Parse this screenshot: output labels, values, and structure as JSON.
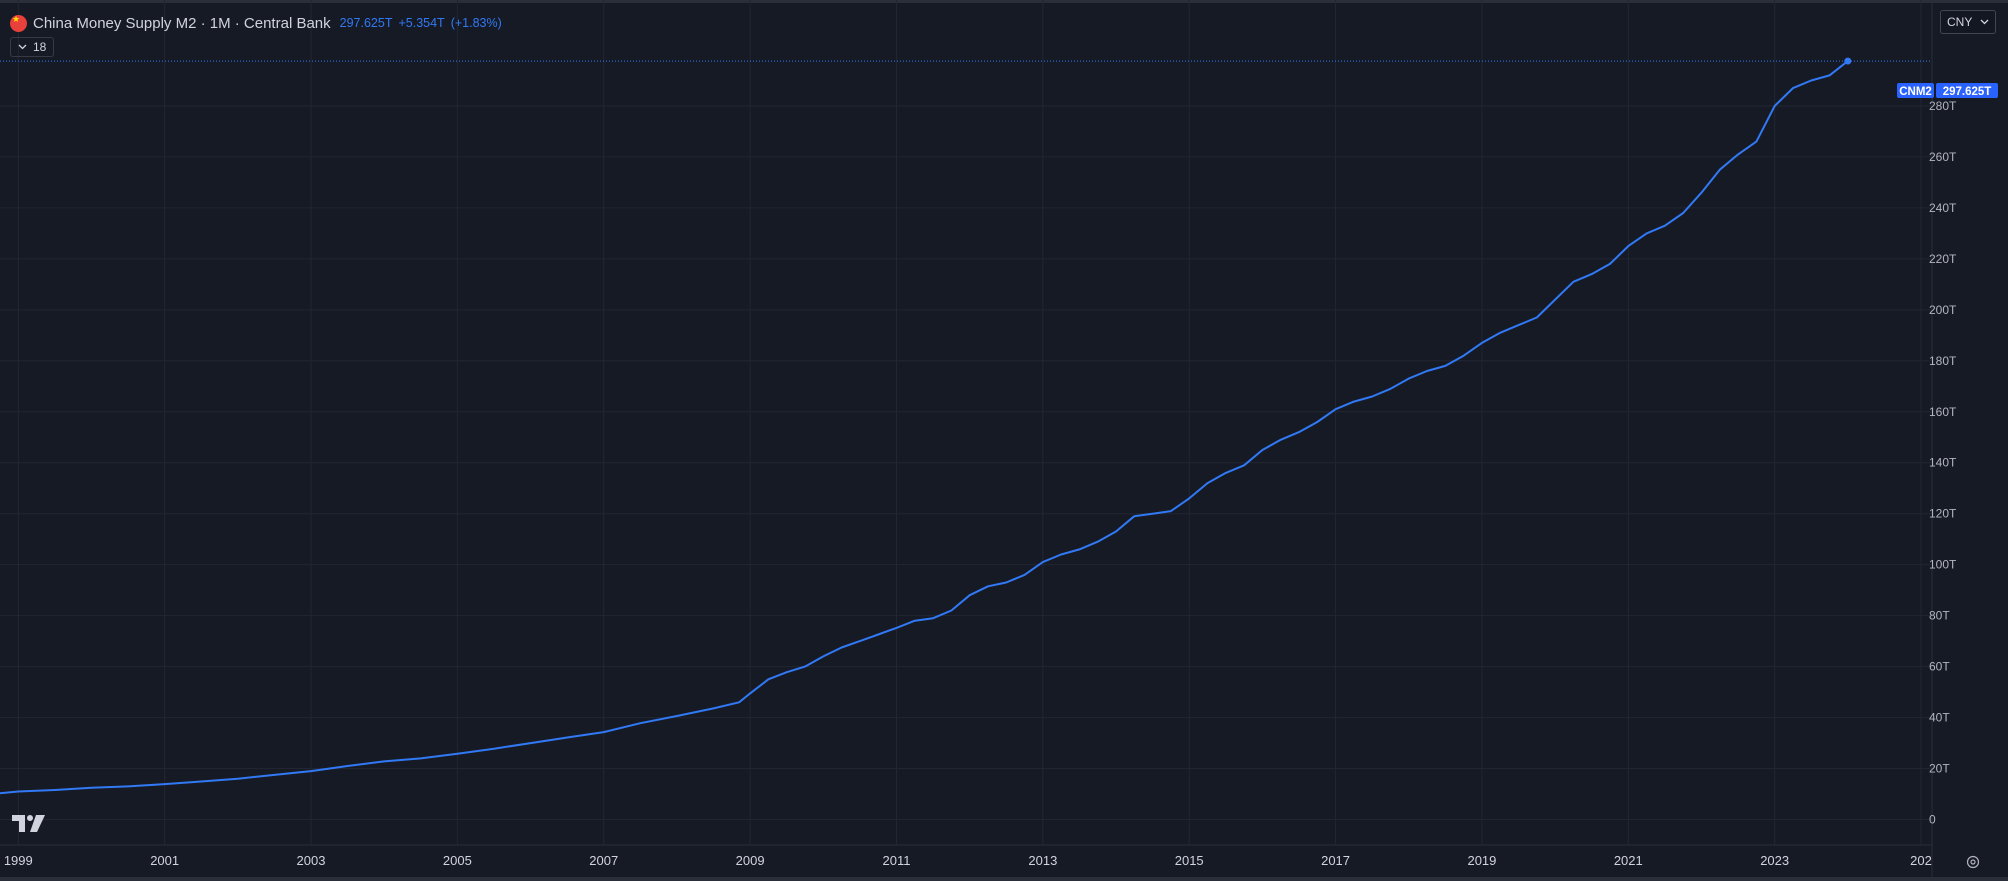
{
  "header": {
    "title": "China Money Supply M2 · 1M · Central Bank",
    "last_value": "297.625T",
    "change": "+5.354T",
    "change_pct": "(+1.83%)"
  },
  "collapse": {
    "label": "18"
  },
  "currency": {
    "label": "CNY"
  },
  "price_label": {
    "symbol": "CNM2",
    "value": "297.625T"
  },
  "colors": {
    "background": "#161a25",
    "line": "#3179f5",
    "grid": "#222633",
    "text": "#b2b5be"
  },
  "icons": {
    "logo": "tradingview-logo-icon",
    "settings": "settings-icon",
    "collapse": "chevron-down-icon",
    "currency": "chevron-down-icon"
  },
  "chart_data": {
    "type": "line",
    "title": "China Money Supply M2",
    "y_tick_labels": [
      "0",
      "20T",
      "40T",
      "60T",
      "80T",
      "100T",
      "120T",
      "140T",
      "160T",
      "180T",
      "200T",
      "220T",
      "240T",
      "260T",
      "280T"
    ],
    "x_tick_labels": [
      "1999",
      "2001",
      "2003",
      "2005",
      "2007",
      "2009",
      "2011",
      "2013",
      "2015",
      "2017",
      "2019",
      "2021",
      "2023",
      "202"
    ],
    "xlim": [
      1998.75,
      2025.15
    ],
    "ylim": [
      -10,
      320
    ],
    "grid": true,
    "series": [
      {
        "unit": "T CNY",
        "x": [
          1998.75,
          1999.0,
          1999.5,
          2000.0,
          2000.5,
          2001.0,
          2001.5,
          2002.0,
          2002.5,
          2003.0,
          2003.5,
          2004.0,
          2004.5,
          2005.0,
          2005.5,
          2006.0,
          2006.5,
          2007.0,
          2007.5,
          2008.0,
          2008.5,
          2008.85,
          2009.0,
          2009.25,
          2009.5,
          2009.75,
          2010.0,
          2010.25,
          2010.5,
          2010.75,
          2011.0,
          2011.25,
          2011.5,
          2011.75,
          2012.0,
          2012.25,
          2012.5,
          2012.75,
          2013.0,
          2013.25,
          2013.5,
          2013.75,
          2014.0,
          2014.25,
          2014.5,
          2014.75,
          2015.0,
          2015.25,
          2015.5,
          2015.75,
          2016.0,
          2016.25,
          2016.5,
          2016.75,
          2017.0,
          2017.25,
          2017.5,
          2017.75,
          2018.0,
          2018.25,
          2018.5,
          2018.75,
          2019.0,
          2019.25,
          2019.5,
          2019.75,
          2020.0,
          2020.25,
          2020.5,
          2020.75,
          2021.0,
          2021.25,
          2021.5,
          2021.75,
          2022.0,
          2022.25,
          2022.5,
          2022.75,
          2023.0,
          2023.25,
          2023.5,
          2023.75,
          2024.0
        ],
        "values": [
          10.3,
          11.0,
          11.6,
          12.5,
          13.0,
          13.9,
          14.9,
          16.0,
          17.5,
          19.0,
          21.0,
          22.8,
          24.0,
          25.8,
          27.8,
          30.0,
          32.2,
          34.3,
          37.8,
          40.6,
          43.6,
          46.0,
          49.5,
          55.0,
          57.8,
          60.0,
          64.0,
          67.5,
          70.0,
          72.6,
          75.2,
          78.0,
          79.0,
          82.0,
          88.0,
          91.5,
          93.0,
          96.0,
          101.0,
          104.0,
          106.0,
          109.0,
          113.0,
          119.0,
          120.0,
          121.0,
          126.0,
          132.0,
          136.0,
          139.0,
          145.0,
          149.0,
          152.0,
          156.0,
          161.0,
          164.0,
          166.0,
          169.0,
          173.0,
          176.0,
          178.0,
          182.0,
          187.0,
          191.0,
          194.0,
          197.0,
          204.0,
          211.0,
          214.0,
          218.0,
          225.0,
          230.0,
          233.0,
          238.0,
          246.0,
          255.0,
          261.0,
          266.0,
          280.0,
          287.0,
          290.0,
          292.0,
          297.6
        ]
      }
    ]
  }
}
